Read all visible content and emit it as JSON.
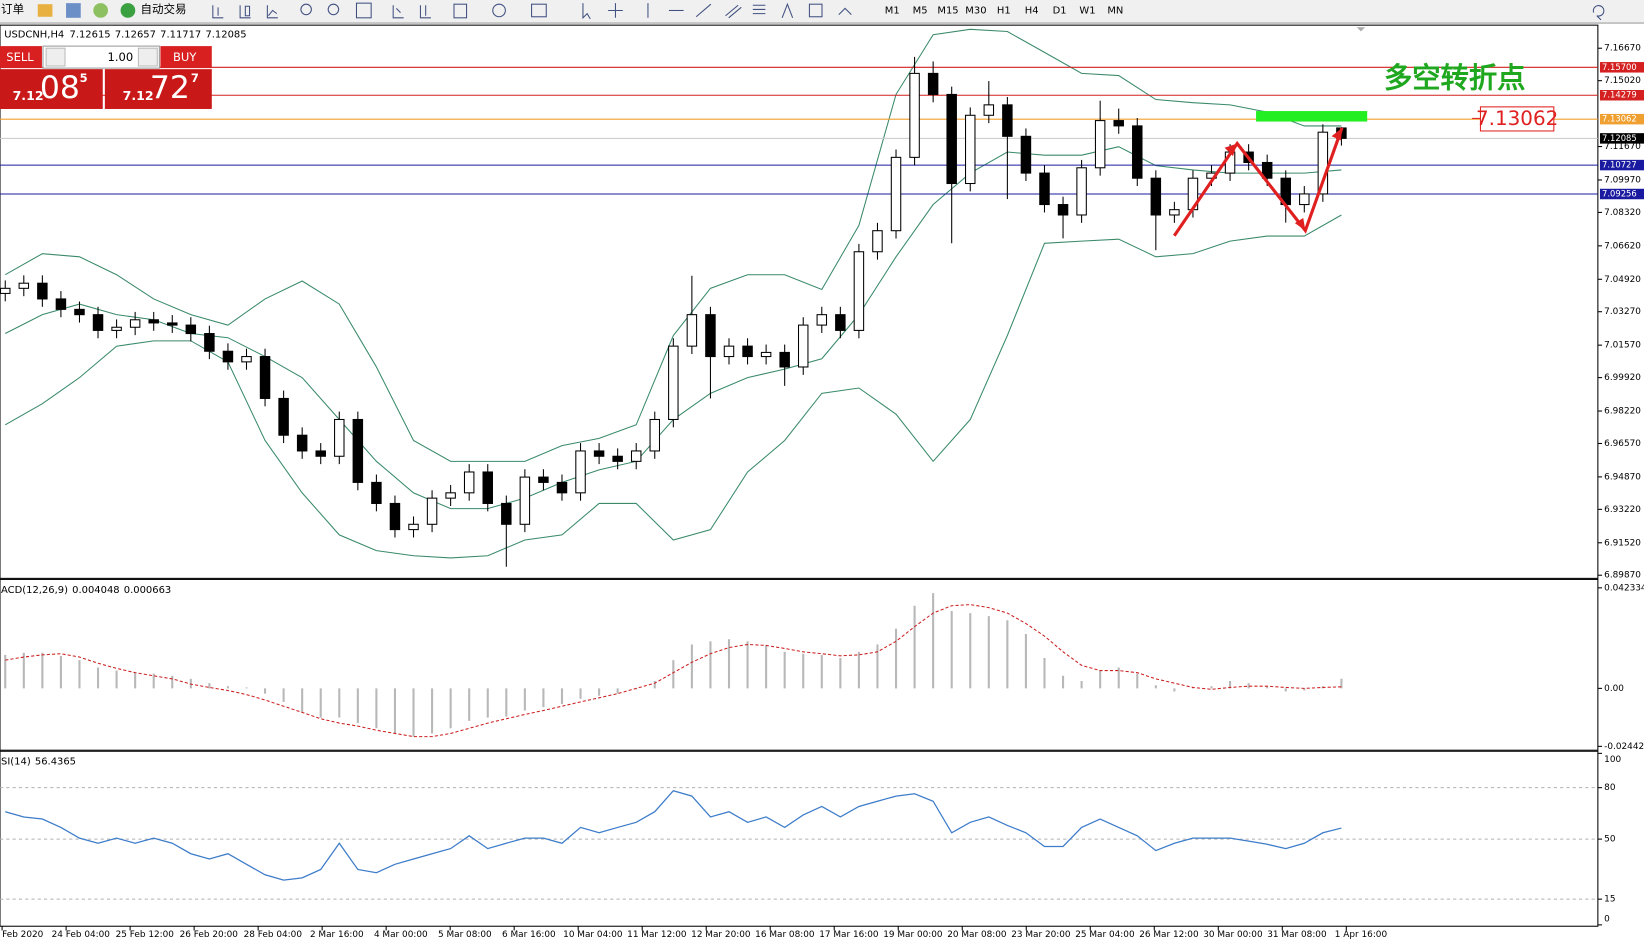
{
  "toolbar": {
    "order": "订单",
    "auto_trade": "自动交易",
    "timeframes": [
      "M1",
      "M5",
      "M15",
      "M30",
      "H1",
      "H4",
      "D1",
      "W1",
      "MN"
    ]
  },
  "trade_panel": {
    "sell": "SELL",
    "lot": "1.00",
    "buy": "BUY",
    "bid": {
      "big": "7.12",
      "main": "08",
      "pip": "5"
    },
    "ask": {
      "big": "7.12",
      "main": "72",
      "pip": "7"
    }
  },
  "chart_data": [
    {
      "type": "candlestick",
      "title": "USDCNH,H4",
      "open": [
        7.042,
        7.0446,
        7.0472,
        7.0392,
        7.0339,
        7.0312,
        7.0232,
        7.0248,
        7.0286,
        7.027,
        7.0259,
        7.0216,
        7.0126,
        7.0072,
        7.0099,
        6.9886,
        6.9699,
        6.9619,
        6.9592,
        6.9779,
        6.9459,
        6.9352,
        6.9219,
        6.9246,
        6.9379,
        6.9406,
        6.9512,
        6.9352,
        6.9246,
        6.9486,
        6.9459,
        6.9406,
        6.9619,
        6.9592,
        6.9566,
        6.9619,
        6.9779,
        7.0152,
        7.0312,
        7.0099,
        7.0152,
        7.0099,
        7.012,
        7.0046,
        7.0259,
        7.0312,
        7.0232,
        7.0632,
        7.0739,
        7.1112,
        7.1539,
        7.1432,
        7.0979,
        7.1326,
        7.1379,
        7.1219,
        7.1032,
        7.0872,
        7.0819,
        7.1059,
        7.1299,
        7.1272,
        7.1006,
        7.0819,
        7.0846,
        7.1006,
        7.1032,
        7.1139,
        7.1086,
        7.1006,
        7.0872,
        7.0926,
        7.12615
      ],
      "high": [
        7.0486,
        7.0512,
        7.0512,
        7.0432,
        7.0379,
        7.0352,
        7.0288,
        7.0326,
        7.0326,
        7.031,
        7.0299,
        7.0256,
        7.0166,
        7.0139,
        7.0139,
        6.9926,
        6.9739,
        6.9659,
        6.9819,
        6.9819,
        6.9499,
        6.9392,
        6.9286,
        6.9419,
        6.9446,
        6.9552,
        6.9552,
        6.9392,
        6.9526,
        6.9526,
        6.9499,
        6.9659,
        6.9659,
        6.9632,
        6.9659,
        6.9819,
        7.0192,
        7.051,
        7.0352,
        7.0192,
        7.0192,
        7.016,
        7.016,
        7.0299,
        7.0352,
        7.0352,
        7.0672,
        7.0779,
        7.1152,
        7.1623,
        7.16,
        7.1472,
        7.1366,
        7.15,
        7.1419,
        7.1259,
        7.1072,
        7.0912,
        7.1099,
        7.14,
        7.136,
        7.1312,
        7.1046,
        7.0886,
        7.1046,
        7.1072,
        7.1179,
        7.1179,
        7.1126,
        7.1046,
        7.0966,
        7.128,
        7.12657
      ],
      "low": [
        7.038,
        7.0406,
        7.0352,
        7.0299,
        7.0272,
        7.0192,
        7.0192,
        7.0208,
        7.023,
        7.0219,
        7.0176,
        7.0086,
        7.0032,
        7.0032,
        6.9846,
        6.9659,
        6.9579,
        6.9552,
        6.9552,
        6.9419,
        6.9312,
        6.9179,
        6.9179,
        6.9206,
        6.9339,
        6.9366,
        6.9312,
        6.903,
        6.9206,
        6.9419,
        6.9366,
        6.9366,
        6.9552,
        6.9526,
        6.9526,
        6.9579,
        6.9739,
        7.0112,
        6.9886,
        7.0059,
        7.0059,
        7.0059,
        6.995,
        7.0006,
        7.0219,
        7.0192,
        7.0192,
        7.0592,
        7.0699,
        7.1072,
        7.1392,
        7.0675,
        7.0939,
        7.1286,
        7.09,
        7.0992,
        7.0832,
        7.07,
        7.0779,
        7.1019,
        7.1232,
        7.0966,
        7.064,
        7.0779,
        7.0806,
        7.0966,
        7.0992,
        7.1046,
        7.0966,
        7.078,
        7.0832,
        7.0886,
        7.11717
      ],
      "close": [
        7.0446,
        7.0472,
        7.0392,
        7.0339,
        7.0312,
        7.0232,
        7.0248,
        7.0286,
        7.027,
        7.0259,
        7.0216,
        7.0126,
        7.0072,
        7.0099,
        6.9886,
        6.9699,
        6.9619,
        6.9592,
        6.9779,
        6.9459,
        6.9352,
        6.9219,
        6.9246,
        6.9379,
        6.9406,
        6.9512,
        6.9352,
        6.9246,
        6.9486,
        6.9459,
        6.9406,
        6.9619,
        6.9592,
        6.9566,
        6.9619,
        6.9779,
        7.0152,
        7.0312,
        7.0099,
        7.0152,
        7.0099,
        7.012,
        7.0046,
        7.0259,
        7.0312,
        7.0232,
        7.0632,
        7.0739,
        7.1112,
        7.1539,
        7.1432,
        7.0979,
        7.1326,
        7.1379,
        7.1219,
        7.1032,
        7.0872,
        7.0819,
        7.1059,
        7.1299,
        7.1272,
        7.1006,
        7.0819,
        7.0846,
        7.1006,
        7.1032,
        7.1139,
        7.1086,
        7.1006,
        7.0872,
        7.0926,
        7.124,
        7.12085
      ],
      "bands": {
        "upper": [
          7.0515,
          7.0622,
          7.0606,
          7.0515,
          7.0392,
          7.0312,
          7.0259,
          7.0392,
          7.0483,
          7.0366,
          7.0046,
          6.9672,
          6.9566,
          6.9566,
          6.9566,
          6.9646,
          6.9683,
          6.9752,
          7.0206,
          7.0446,
          7.0515,
          7.0515,
          7.044,
          7.0766,
          7.1432,
          7.1736,
          7.1763,
          7.1752,
          7.1646,
          7.1539,
          7.1528,
          7.1406,
          7.139,
          7.1379,
          7.1342,
          7.1272,
          7.1272
        ],
        "middle": [
          7.0216,
          7.0312,
          7.0366,
          7.0312,
          7.0286,
          7.0216,
          7.0195,
          7.0099,
          6.9992,
          6.9779,
          6.9566,
          6.9406,
          6.9326,
          6.9326,
          6.9379,
          6.9459,
          6.9523,
          6.9566,
          6.9779,
          6.9912,
          6.9992,
          7.0035,
          7.0088,
          7.0312,
          7.0606,
          7.0872,
          7.1032,
          7.1139,
          7.1123,
          7.1123,
          7.1166,
          7.107,
          7.1048,
          7.1032,
          7.1032,
          7.1032,
          7.1048
        ],
        "lower": [
          6.9752,
          6.9859,
          6.9992,
          7.0152,
          7.0179,
          7.0179,
          7.0072,
          6.9672,
          6.9406,
          6.9192,
          6.9112,
          6.9086,
          6.9075,
          6.9086,
          6.9166,
          6.9192,
          6.9352,
          6.9352,
          6.9166,
          6.9219,
          6.9512,
          6.9672,
          6.9912,
          6.9939,
          6.9806,
          6.9566,
          6.9779,
          7.0206,
          7.0675,
          7.0686,
          7.0696,
          7.0606,
          7.0622,
          7.0686,
          7.0712,
          7.0712,
          7.0819
        ]
      },
      "up_color": "#ffffff",
      "down_color": "#000000",
      "band_color": "#3a8a6a",
      "ylim": [
        6.89763,
        7.17737
      ],
      "yticks": [
        {
          "value": 7.1667,
          "label": "7.16670"
        },
        {
          "value": 7.1502,
          "label": "7.15020"
        },
        {
          "value": 7.1167,
          "label": "7.11670"
        },
        {
          "value": 7.0997,
          "label": "7.09970"
        },
        {
          "value": 7.0832,
          "label": "7.08320"
        },
        {
          "value": 7.0662,
          "label": "7.06620"
        },
        {
          "value": 7.0492,
          "label": "7.04920"
        },
        {
          "value": 7.0327,
          "label": "7.03270"
        },
        {
          "value": 7.0157,
          "label": "7.01570"
        },
        {
          "value": 6.9992,
          "label": "6.99920"
        },
        {
          "value": 6.9822,
          "label": "6.98220"
        },
        {
          "value": 6.9657,
          "label": "6.96570"
        },
        {
          "value": 6.9487,
          "label": "6.94870"
        },
        {
          "value": 6.9322,
          "label": "6.93220"
        },
        {
          "value": 6.9152,
          "label": "6.91520"
        },
        {
          "value": 6.8987,
          "label": "6.89870"
        }
      ],
      "levels": [
        {
          "value": 7.157,
          "label": "7.15700",
          "color": "#d42020"
        },
        {
          "value": 7.14279,
          "label": "7.14279",
          "color": "#d42020"
        },
        {
          "value": 7.13062,
          "label": "7.13062",
          "color": "#f0a030"
        },
        {
          "value": 7.10727,
          "label": "7.10727",
          "color": "#1a1aa0"
        },
        {
          "value": 7.09256,
          "label": "7.09256",
          "color": "#1a1aa0"
        }
      ],
      "current_color": "#c8c8c8",
      "annotation": "多空转折点",
      "time_labels": [
        "Feb 2020",
        "24 Feb 04:00",
        "25 Feb 12:00",
        "26 Feb 20:00",
        "28 Feb 04:00",
        "2 Mar 16:00",
        "4 Mar 00:00",
        "5 Mar 08:00",
        "6 Mar 16:00",
        "10 Mar 04:00",
        "11 Mar 12:00",
        "12 Mar 20:00",
        "16 Mar 08:00",
        "17 Mar 16:00",
        "19 Mar 00:00",
        "20 Mar 08:00",
        "23 Mar 20:00",
        "25 Mar 04:00",
        "26 Mar 12:00",
        "30 Mar 00:00",
        "31 Mar 08:00",
        "1 Apr 16:00"
      ]
    },
    {
      "type": "macd",
      "title": "ACD(12,26,9)",
      "values": [
        0.0141,
        0.015,
        0.015,
        0.0137,
        0.0119,
        0.0088,
        0.0075,
        0.0066,
        0.0062,
        0.0053,
        0.004,
        0.0022,
        0.0009,
        0.0004,
        -0.0022,
        -0.0057,
        -0.0101,
        -0.0123,
        -0.0123,
        -0.0146,
        -0.0168,
        -0.019,
        -0.0203,
        -0.019,
        -0.0168,
        -0.0137,
        -0.0123,
        -0.0119,
        -0.0093,
        -0.0079,
        -0.0066,
        -0.0044,
        -0.0031,
        -0.0022,
        -0.0004,
        0.0031,
        0.0119,
        0.0185,
        0.0198,
        0.0207,
        0.0198,
        0.0181,
        0.0154,
        0.0146,
        0.0141,
        0.0128,
        0.0154,
        0.0185,
        0.0251,
        0.0348,
        0.0401,
        0.0326,
        0.0317,
        0.0304,
        0.0287,
        0.0229,
        0.0128,
        0.0053,
        0.0031,
        0.0075,
        0.0088,
        0.0062,
        0.0013,
        -0.0013,
        0.0004,
        0.0009,
        0.0031,
        0.0022,
        0.0009,
        -0.0013,
        -0.0009,
        0.0009,
        0.004048
      ],
      "signal": [
        0.0119,
        0.0132,
        0.0141,
        0.0146,
        0.0132,
        0.0106,
        0.0084,
        0.0066,
        0.0053,
        0.004,
        0.0018,
        0.0004,
        -0.0009,
        -0.0026,
        -0.0049,
        -0.0075,
        -0.0101,
        -0.0128,
        -0.0146,
        -0.0159,
        -0.0176,
        -0.019,
        -0.0203,
        -0.0203,
        -0.019,
        -0.0168,
        -0.0146,
        -0.0128,
        -0.011,
        -0.0093,
        -0.0075,
        -0.0057,
        -0.004,
        -0.0022,
        0,
        0.0022,
        0.0066,
        0.011,
        0.0146,
        0.0172,
        0.0185,
        0.0181,
        0.0168,
        0.0154,
        0.0146,
        0.0137,
        0.0141,
        0.0154,
        0.0198,
        0.026,
        0.0317,
        0.0348,
        0.0353,
        0.034,
        0.0317,
        0.0273,
        0.022,
        0.0154,
        0.0097,
        0.0075,
        0.0075,
        0.0066,
        0.004,
        0.0022,
        0.0004,
        -0.0004,
        0.0004,
        0.0009,
        0.0009,
        0.0004,
        0,
        0.0004,
        0.000663
      ],
      "color": "#b8b8b8",
      "signal_color": "#cc2020",
      "ylim": [
        -0.0256,
        0.045
      ],
      "yticks": [
        -0.02442,
        {
          "value": 0,
          "label": "0.00"
        },
        0.042334
      ]
    },
    {
      "type": "line",
      "title": "SI(14)",
      "values": [
        66.0,
        62.9,
        61.7,
        56.8,
        50.6,
        47.6,
        50.6,
        47.6,
        50.6,
        47.6,
        41.5,
        38.4,
        41.5,
        35.3,
        29.2,
        26.1,
        27.4,
        32.3,
        47.6,
        32.3,
        30.4,
        35.3,
        38.4,
        41.5,
        44.5,
        51.9,
        44.5,
        47.6,
        50.6,
        50.6,
        47.6,
        56.8,
        53.7,
        56.8,
        59.8,
        66.0,
        78.2,
        75.1,
        62.9,
        66.0,
        59.8,
        62.9,
        56.8,
        64.1,
        69.0,
        62.9,
        69.0,
        72.1,
        75.1,
        76.4,
        72.1,
        53.7,
        59.8,
        62.9,
        58.0,
        53.7,
        45.7,
        45.7,
        56.8,
        61.7,
        56.8,
        51.9,
        43.3,
        47.6,
        50.6,
        50.6,
        50.6,
        48.8,
        47.0,
        44.5,
        47.6,
        53.7,
        56.4365
      ],
      "color": "#3d7cc9",
      "ylim": [
        0,
        100
      ],
      "yticks": [
        0,
        15,
        50,
        80,
        100
      ]
    }
  ]
}
